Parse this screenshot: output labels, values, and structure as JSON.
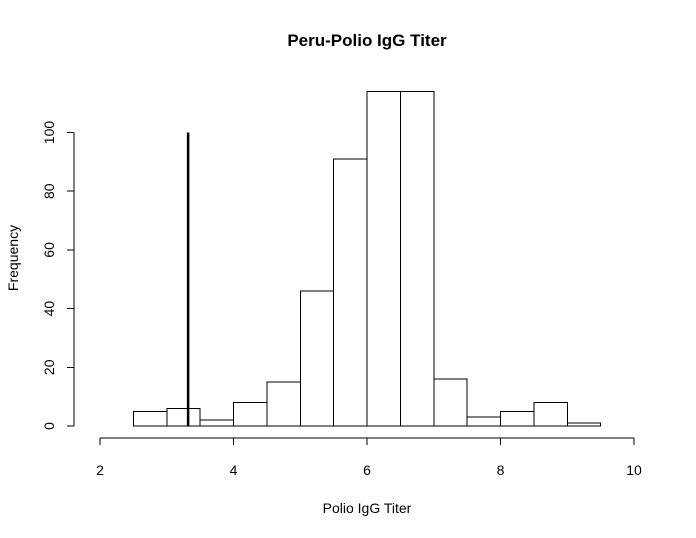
{
  "chart_data": {
    "type": "bar",
    "title": "Peru-Polio IgG Titer",
    "xlabel": "Polio IgG Titer",
    "ylabel": "Frequency",
    "xlim": [
      2,
      10
    ],
    "ylim": [
      0,
      115
    ],
    "x_ticks": [
      "2",
      "4",
      "6",
      "8",
      "10"
    ],
    "y_ticks": [
      "0",
      "20",
      "40",
      "60",
      "80",
      "100"
    ],
    "bins": [
      {
        "start": 2.5,
        "end": 3.0,
        "count": 5
      },
      {
        "start": 3.0,
        "end": 3.5,
        "count": 6
      },
      {
        "start": 3.5,
        "end": 4.0,
        "count": 2
      },
      {
        "start": 4.0,
        "end": 4.5,
        "count": 8
      },
      {
        "start": 4.5,
        "end": 5.0,
        "count": 15
      },
      {
        "start": 5.0,
        "end": 5.5,
        "count": 46
      },
      {
        "start": 5.5,
        "end": 6.0,
        "count": 91
      },
      {
        "start": 6.0,
        "end": 6.5,
        "count": 114
      },
      {
        "start": 6.5,
        "end": 7.0,
        "count": 114
      },
      {
        "start": 7.0,
        "end": 7.5,
        "count": 16
      },
      {
        "start": 7.5,
        "end": 8.0,
        "count": 3
      },
      {
        "start": 8.0,
        "end": 8.5,
        "count": 5
      },
      {
        "start": 8.5,
        "end": 9.0,
        "count": 8
      },
      {
        "start": 9.0,
        "end": 9.5,
        "count": 1
      }
    ],
    "reference_line": {
      "x": 3.32,
      "y_from": 0,
      "y_to": 100
    },
    "grid": false,
    "legend": "none"
  }
}
